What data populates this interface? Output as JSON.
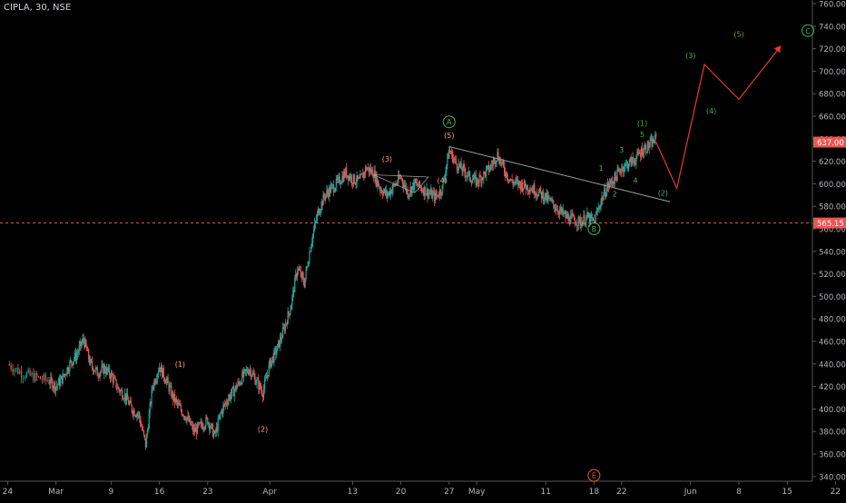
{
  "header": {
    "symbol": "CIPLA, 30, NSE"
  },
  "colors": {
    "background": "#000000",
    "up_candle": "#26a69a",
    "down_candle": "#ef5350",
    "axis_text": "#b2b5be",
    "axis_line": "#555555",
    "price_tag": "#ef5350",
    "projection": "#e53935",
    "wave_green": "#4caf50",
    "wave_orange": "#ff9e6e",
    "wave_red": "#ef5350",
    "trendline": "#9e9e9e"
  },
  "chart_data": {
    "type": "candlestick",
    "symbol": "CIPLA",
    "timeframe": "30",
    "exchange": "NSE",
    "ylim": [
      335,
      763
    ],
    "y_ticks": [
      340,
      360,
      380,
      400,
      420,
      440,
      460,
      480,
      500,
      520,
      540,
      560,
      580,
      600,
      620,
      640,
      660,
      680,
      700,
      720,
      740,
      760
    ],
    "x_ticks": [
      {
        "label": "24",
        "day": -6
      },
      {
        "label": "Mar",
        "day": 1
      },
      {
        "label": "9",
        "day": 9
      },
      {
        "label": "16",
        "day": 16
      },
      {
        "label": "23",
        "day": 23
      },
      {
        "label": "Apr",
        "day": 32
      },
      {
        "label": "13",
        "day": 44
      },
      {
        "label": "20",
        "day": 51
      },
      {
        "label": "27",
        "day": 58
      },
      {
        "label": "May",
        "day": 62
      },
      {
        "label": "11",
        "day": 72
      },
      {
        "label": "18",
        "day": 79
      },
      {
        "label": "22",
        "day": 83
      },
      {
        "label": "Jun",
        "day": 93
      },
      {
        "label": "8",
        "day": 100
      },
      {
        "label": "15",
        "day": 107
      },
      {
        "label": "22",
        "day": 114
      }
    ],
    "last_price": "637.00",
    "support_level": "565.15",
    "support_value": 565.15,
    "price_path": [
      [
        -6,
        440
      ],
      [
        -4,
        432
      ],
      [
        -2,
        428
      ],
      [
        0,
        425
      ],
      [
        1,
        420
      ],
      [
        2,
        428
      ],
      [
        3,
        440
      ],
      [
        4,
        448
      ],
      [
        5,
        462
      ],
      [
        6,
        440
      ],
      [
        7,
        432
      ],
      [
        8,
        436
      ],
      [
        9,
        430
      ],
      [
        10,
        418
      ],
      [
        11,
        412
      ],
      [
        12,
        400
      ],
      [
        13,
        395
      ],
      [
        14,
        368
      ],
      [
        15,
        420
      ],
      [
        16,
        438
      ],
      [
        17,
        425
      ],
      [
        18,
        410
      ],
      [
        19,
        400
      ],
      [
        20,
        392
      ],
      [
        21,
        380
      ],
      [
        22,
        385
      ],
      [
        23,
        390
      ],
      [
        24,
        376
      ],
      [
        25,
        398
      ],
      [
        26,
        410
      ],
      [
        27,
        418
      ],
      [
        28,
        428
      ],
      [
        29,
        436
      ],
      [
        30,
        425
      ],
      [
        31,
        415
      ],
      [
        32,
        440
      ],
      [
        33,
        452
      ],
      [
        34,
        470
      ],
      [
        35,
        490
      ],
      [
        36,
        525
      ],
      [
        37,
        512
      ],
      [
        38,
        548
      ],
      [
        39,
        575
      ],
      [
        40,
        590
      ],
      [
        41,
        596
      ],
      [
        42,
        602
      ],
      [
        43,
        610
      ],
      [
        44,
        604
      ],
      [
        45,
        602
      ],
      [
        46,
        614
      ],
      [
        47,
        610
      ],
      [
        48,
        596
      ],
      [
        49,
        590
      ],
      [
        50,
        598
      ],
      [
        51,
        606
      ],
      [
        52,
        592
      ],
      [
        53,
        600
      ],
      [
        54,
        596
      ],
      [
        55,
        592
      ],
      [
        56,
        588
      ],
      [
        57,
        596
      ],
      [
        58,
        630
      ],
      [
        59,
        618
      ],
      [
        60,
        612
      ],
      [
        61,
        606
      ],
      [
        62,
        602
      ],
      [
        63,
        608
      ],
      [
        64,
        615
      ],
      [
        65,
        626
      ],
      [
        66,
        612
      ],
      [
        67,
        602
      ],
      [
        68,
        600
      ],
      [
        69,
        598
      ],
      [
        70,
        596
      ],
      [
        71,
        592
      ],
      [
        72,
        588
      ],
      [
        73,
        582
      ],
      [
        74,
        576
      ],
      [
        75,
        570
      ],
      [
        76,
        568
      ],
      [
        77,
        566
      ],
      [
        78,
        570
      ],
      [
        79,
        566
      ],
      [
        80,
        585
      ],
      [
        81,
        598
      ],
      [
        82,
        605
      ],
      [
        83,
        614
      ],
      [
        84,
        618
      ],
      [
        85,
        622
      ],
      [
        86,
        630
      ],
      [
        87,
        634
      ],
      [
        88,
        640
      ]
    ],
    "trendline": {
      "from": [
        58,
        633
      ],
      "to": [
        90,
        584
      ]
    },
    "small_triangle": {
      "points": [
        [
          47,
          608
        ],
        [
          55,
          606
        ],
        [
          53,
          592
        ]
      ]
    },
    "projection_path": [
      [
        88,
        637
      ],
      [
        91,
        596
      ],
      [
        95,
        706
      ],
      [
        100,
        675
      ],
      [
        106,
        722
      ]
    ],
    "annotations": [
      {
        "text": "A",
        "day": 58,
        "price": 655,
        "color": "green",
        "circle": true
      },
      {
        "text": "B",
        "day": 79,
        "price": 560,
        "color": "green",
        "circle": true
      },
      {
        "text": "C",
        "day": 110,
        "price": 736,
        "color": "green",
        "circle": true
      },
      {
        "text": "E",
        "day": 79,
        "price": 341,
        "color": "red",
        "circle": true
      },
      {
        "text": "(1)",
        "day": 19,
        "price": 440,
        "color": "orange"
      },
      {
        "text": "(2)",
        "day": 31,
        "price": 382,
        "color": "orange"
      },
      {
        "text": "(3)",
        "day": 49,
        "price": 622,
        "color": "orange"
      },
      {
        "text": "(4)",
        "day": 57,
        "price": 603,
        "color": "orange"
      },
      {
        "text": "(5)",
        "day": 58,
        "price": 643,
        "color": "orange"
      },
      {
        "text": "(1)",
        "day": 86,
        "price": 654,
        "color": "green"
      },
      {
        "text": "5",
        "day": 86,
        "price": 644,
        "color": "green"
      },
      {
        "text": "3",
        "day": 83,
        "price": 630,
        "color": "green"
      },
      {
        "text": "1",
        "day": 80,
        "price": 614,
        "color": "green"
      },
      {
        "text": "4",
        "day": 85,
        "price": 603,
        "color": "green"
      },
      {
        "text": "2",
        "day": 82,
        "price": 591,
        "color": "green"
      },
      {
        "text": "(2)",
        "day": 89,
        "price": 592,
        "color": "green"
      },
      {
        "text": "(3)",
        "day": 93,
        "price": 714,
        "color": "green"
      },
      {
        "text": "(4)",
        "day": 96,
        "price": 665,
        "color": "green"
      },
      {
        "text": "(5)",
        "day": 100,
        "price": 733,
        "color": "green"
      }
    ]
  }
}
